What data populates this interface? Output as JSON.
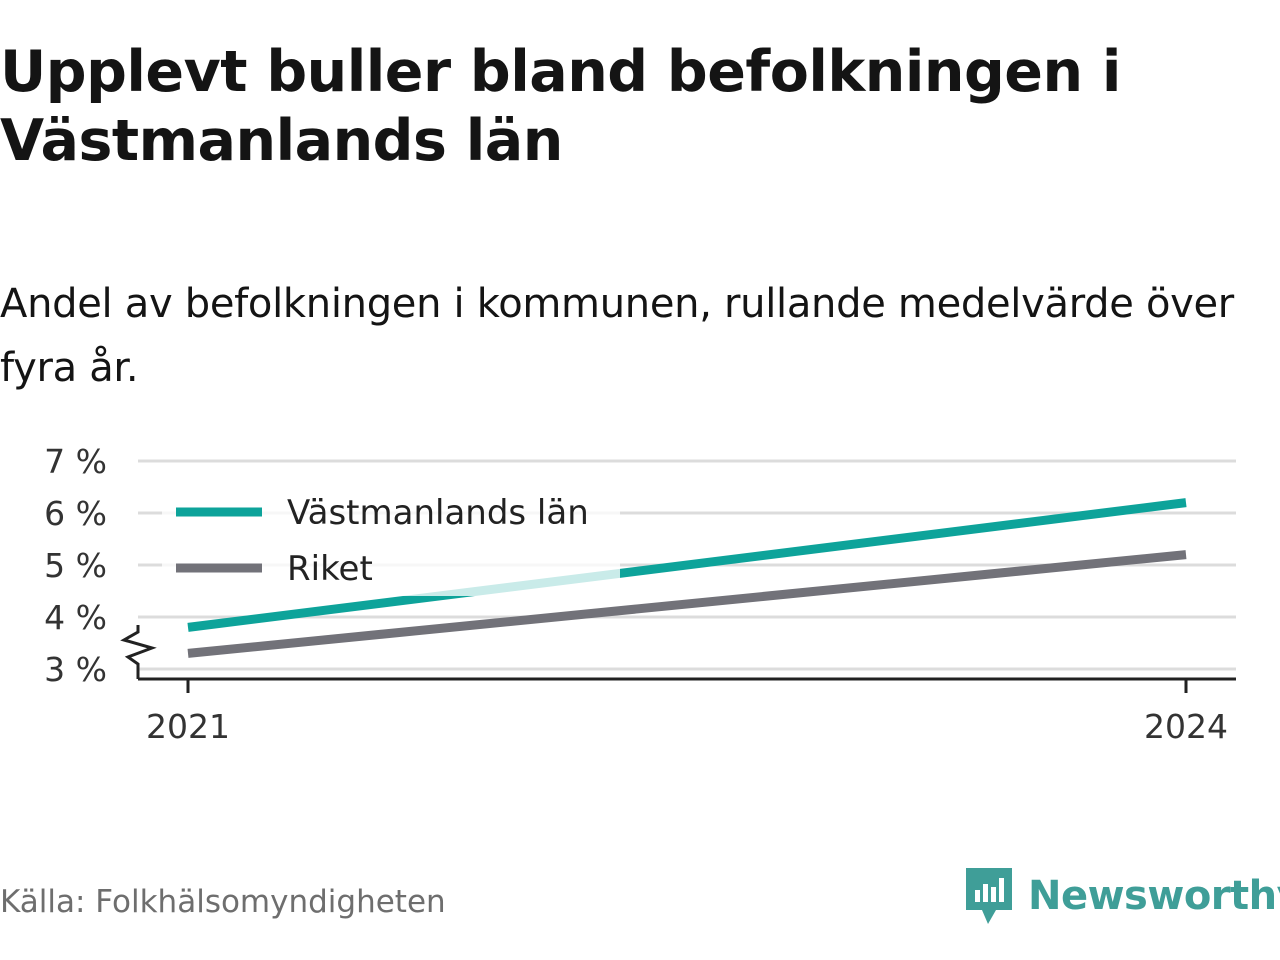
{
  "title": "Upplevt buller bland befolkningen i Västmanlands län",
  "subtitle": "Andel av befolkningen i kommunen, rullande medelvärde över fyra år.",
  "source": "Källa: Folkhälsomyndigheten",
  "brand": {
    "name": "Newsworthy",
    "icon": "newsworthy-logo-icon",
    "color": "#3f9e98"
  },
  "chart_data": {
    "type": "line",
    "x": [
      2021,
      2024
    ],
    "xticks": [
      "2021",
      "2024"
    ],
    "yticks": [
      "3 %",
      "4 %",
      "5 %",
      "6 %",
      "7 %"
    ],
    "ylim": [
      3,
      7
    ],
    "y_axis_break": true,
    "grid": true,
    "legend": "top-left",
    "series": [
      {
        "name": "Västmanlands län",
        "values": [
          3.8,
          6.2
        ],
        "color": "#0da39a"
      },
      {
        "name": "Riket",
        "values": [
          3.3,
          5.2
        ],
        "color": "#727279"
      }
    ]
  }
}
